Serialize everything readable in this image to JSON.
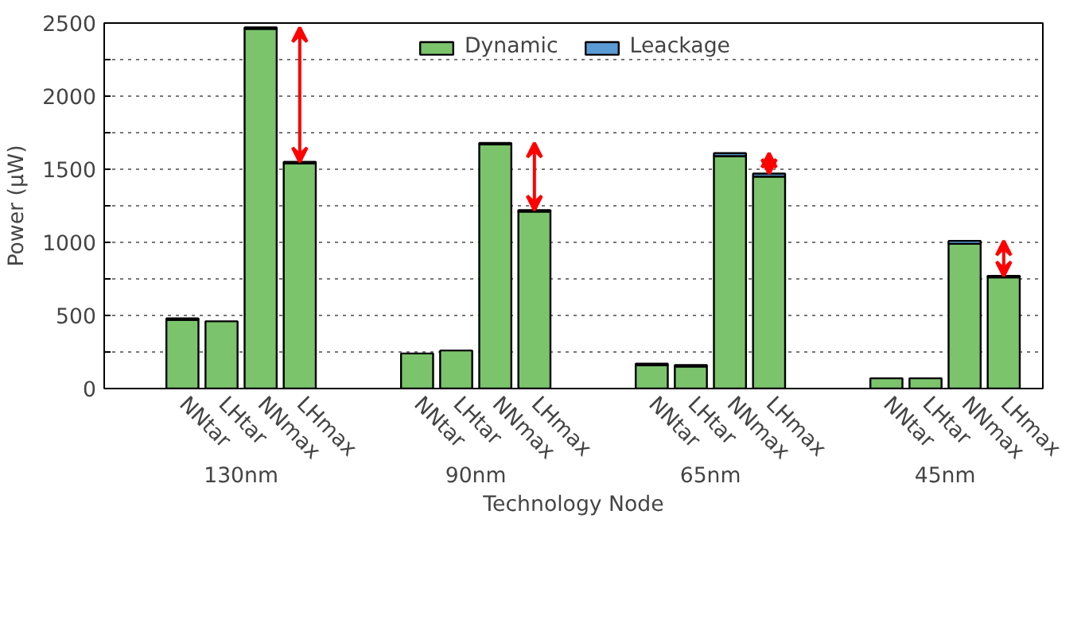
{
  "chart_data": {
    "type": "bar",
    "stacked": true,
    "xlabel": "Technology Node",
    "ylabel": "Power (μW)",
    "categories": [
      "NNtar",
      "LHtar",
      "NNmax",
      "LHmax",
      null,
      null,
      "NNtar",
      "LHtar",
      "NNmax",
      "LHmax",
      null,
      null,
      "NNtar",
      "LHtar",
      "NNmax",
      "LHmax",
      null,
      null,
      "NNtar",
      "LHtar",
      "NNmax",
      "LHmax"
    ],
    "series": [
      {
        "name": "Dynamic",
        "color": "#7bc46c",
        "values": [
          470,
          460,
          2460,
          1540,
          null,
          null,
          240,
          260,
          1670,
          1210,
          null,
          null,
          160,
          150,
          1590,
          1450,
          null,
          null,
          70,
          70,
          990,
          760
        ]
      },
      {
        "name": "Leackage",
        "color": "#5b9bd5",
        "values": [
          10,
          0,
          10,
          10,
          null,
          null,
          0,
          0,
          10,
          10,
          null,
          null,
          10,
          10,
          20,
          20,
          null,
          null,
          0,
          0,
          20,
          10
        ]
      }
    ],
    "annotations": [
      "130nm",
      "90nm",
      "65nm",
      "45nm"
    ],
    "ylim": [
      0,
      2500
    ],
    "yticks": [
      0,
      {
        "value": 250,
        "label": null
      },
      500,
      {
        "value": 750,
        "label": null
      },
      1000,
      {
        "value": 1250,
        "label": null
      },
      1500,
      {
        "value": 1750,
        "label": null
      },
      2000,
      {
        "value": 2250,
        "label": null
      },
      2500
    ],
    "grid": "y",
    "legend": "top"
  }
}
